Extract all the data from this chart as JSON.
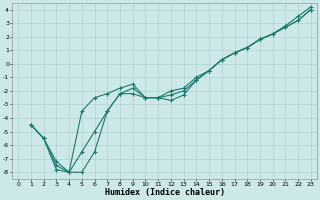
{
  "title": "",
  "xlabel": "Humidex (Indice chaleur)",
  "xlim": [
    -0.5,
    23.5
  ],
  "ylim": [
    -8.5,
    4.5
  ],
  "xticks": [
    0,
    1,
    2,
    3,
    4,
    5,
    6,
    7,
    8,
    9,
    10,
    11,
    12,
    13,
    14,
    15,
    16,
    17,
    18,
    19,
    20,
    21,
    22,
    23
  ],
  "yticks": [
    4,
    3,
    2,
    1,
    0,
    -1,
    -2,
    -3,
    -4,
    -5,
    -6,
    -7,
    -8
  ],
  "background_color": "#cce8e8",
  "grid_color": "#aacccc",
  "line_color": "#1a7a6e",
  "line1_x": [
    1,
    2,
    3,
    4,
    5,
    6,
    7,
    8,
    9,
    10,
    11,
    12,
    13,
    14,
    15,
    16,
    17,
    18,
    19,
    20,
    21,
    22,
    23
  ],
  "line1_y": [
    -4.5,
    -5.5,
    -7.8,
    -8.0,
    -6.5,
    -5.0,
    -3.5,
    -2.2,
    -1.8,
    -2.5,
    -2.5,
    -2.7,
    -2.3,
    -1.2,
    -0.5,
    0.3,
    0.8,
    1.2,
    1.8,
    2.2,
    2.7,
    3.2,
    4.0
  ],
  "line2_x": [
    1,
    2,
    3,
    4,
    5,
    6,
    7,
    8,
    9,
    10,
    11,
    12,
    13,
    14,
    15,
    16,
    17,
    18,
    19,
    20,
    21,
    22,
    23
  ],
  "line2_y": [
    -4.5,
    -5.5,
    -7.5,
    -8.0,
    -8.0,
    -6.5,
    -3.5,
    -2.2,
    -2.2,
    -2.5,
    -2.5,
    -2.3,
    -2.0,
    -1.2,
    -0.5,
    0.3,
    0.8,
    1.2,
    1.8,
    2.2,
    2.8,
    3.5,
    4.2
  ],
  "line3_x": [
    1,
    2,
    3,
    4,
    5,
    6,
    7,
    8,
    9,
    10,
    11,
    12,
    13,
    14,
    15,
    16,
    17,
    18,
    19,
    20,
    21,
    22,
    23
  ],
  "line3_y": [
    -4.5,
    -5.5,
    -7.2,
    -8.0,
    -3.5,
    -2.5,
    -2.2,
    -1.8,
    -1.5,
    -2.5,
    -2.5,
    -2.0,
    -1.8,
    -1.0,
    -0.5,
    0.3,
    0.8,
    1.2,
    1.8,
    2.2,
    2.7,
    3.2,
    4.0
  ],
  "marker": "+",
  "markersize": 3,
  "linewidth": 0.8,
  "tick_fontsize": 4.5,
  "xlabel_fontsize": 6.0,
  "fig_width": 3.2,
  "fig_height": 2.0,
  "dpi": 100
}
